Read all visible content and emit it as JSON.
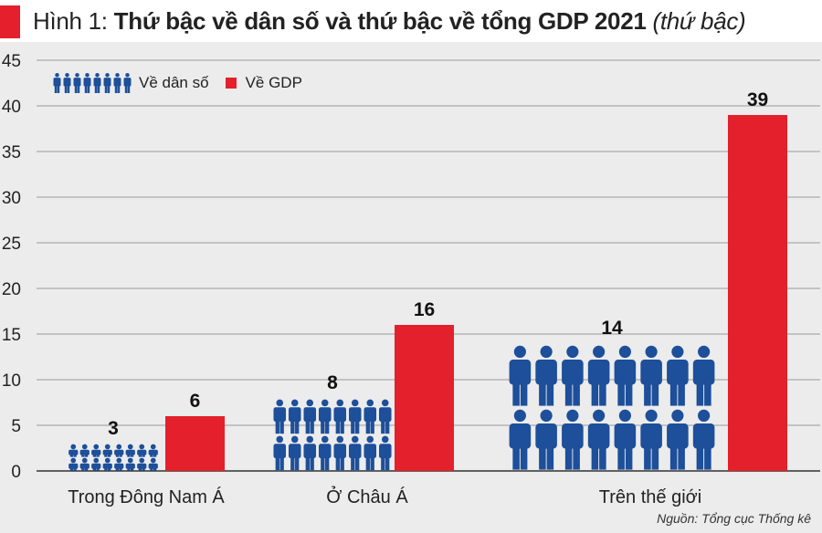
{
  "title": {
    "prefix": "Hình 1:",
    "main": "Thứ bậc về dân số và thứ bậc về tổng GDP 2021",
    "unit": "(thứ bậc)"
  },
  "source": "Nguồn: Tổng cục Thống kê",
  "legend": {
    "population_label": "Về dân số",
    "gdp_label": "Về GDP"
  },
  "colors": {
    "population": "#1d4f9a",
    "gdp": "#e3202b",
    "accent": "#e3202b"
  },
  "chart_data": {
    "type": "bar",
    "categories": [
      "Trong Đông Nam Á",
      "Ở Châu Á",
      "Trên thế giới"
    ],
    "series": [
      {
        "name": "Về dân số",
        "values": [
          3,
          8,
          14
        ],
        "style": "pictogram-person-icons"
      },
      {
        "name": "Về GDP",
        "values": [
          6,
          16,
          39
        ],
        "style": "solid-bar"
      }
    ],
    "title": "Thứ bậc về dân số và thứ bậc về tổng GDP 2021",
    "xlabel": "",
    "ylabel": "",
    "ylim": [
      0,
      45
    ],
    "yticks": [
      0,
      5,
      10,
      15,
      20,
      25,
      30,
      35,
      40,
      45
    ],
    "grid": true,
    "legend_position": "top-left"
  }
}
